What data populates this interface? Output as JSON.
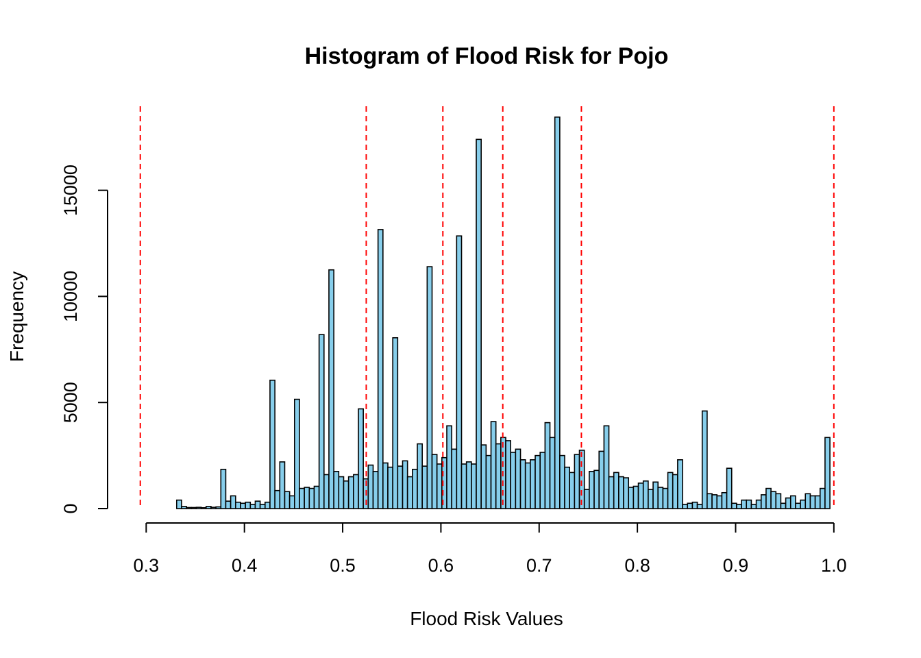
{
  "chart_data": {
    "type": "bar",
    "title": "Histogram of Flood Risk for Pojo",
    "xlabel": "Flood Risk Values",
    "ylabel": "Frequency",
    "xlim": [
      0.29,
      1.005
    ],
    "ylim": [
      0,
      18800
    ],
    "x_ticks": [
      0.3,
      0.4,
      0.5,
      0.6,
      0.7,
      0.8,
      0.9,
      1.0
    ],
    "x_tick_labels": [
      "0.3",
      "0.4",
      "0.5",
      "0.6",
      "0.7",
      "0.8",
      "0.9",
      "1.0"
    ],
    "y_ticks": [
      0,
      5000,
      10000,
      15000
    ],
    "y_tick_labels": [
      "0",
      "5000",
      "10000",
      "15000"
    ],
    "bin_start": 0.291,
    "bin_width": 0.005,
    "values": [
      0,
      0,
      0,
      0,
      0,
      0,
      0,
      0,
      400,
      100,
      50,
      50,
      60,
      40,
      100,
      60,
      80,
      1850,
      350,
      600,
      300,
      250,
      300,
      200,
      350,
      200,
      300,
      6050,
      850,
      2200,
      800,
      600,
      5150,
      950,
      1000,
      950,
      1050,
      8200,
      1600,
      11250,
      1750,
      1500,
      1300,
      1500,
      1600,
      4700,
      1400,
      2050,
      1750,
      13150,
      2150,
      1950,
      8050,
      2000,
      2250,
      1500,
      1850,
      3050,
      2000,
      11400,
      2550,
      2100,
      2400,
      3900,
      2800,
      12850,
      2100,
      2200,
      2100,
      17400,
      3000,
      2500,
      4100,
      3050,
      3350,
      3200,
      2650,
      2800,
      2300,
      2150,
      2300,
      2500,
      2650,
      4050,
      3350,
      18450,
      2500,
      1950,
      1700,
      2550,
      2750,
      900,
      1750,
      1800,
      2700,
      3900,
      1500,
      1700,
      1500,
      1450,
      1000,
      1050,
      1200,
      1300,
      900,
      1250,
      1000,
      950,
      1700,
      1600,
      2300,
      200,
      250,
      300,
      200,
      4600,
      700,
      650,
      600,
      750,
      1900,
      250,
      200,
      400,
      400,
      200,
      400,
      650,
      950,
      800,
      700,
      250,
      500,
      600,
      250,
      400,
      700,
      600,
      600,
      950,
      3350
    ],
    "vlines": [
      0.294,
      0.524,
      0.602,
      0.663,
      0.743,
      1.0
    ],
    "colors": {
      "bar_fill": "#87CEEB",
      "bar_stroke": "#000000",
      "vline": "#FF0000"
    },
    "grid": false,
    "legend": "none"
  }
}
